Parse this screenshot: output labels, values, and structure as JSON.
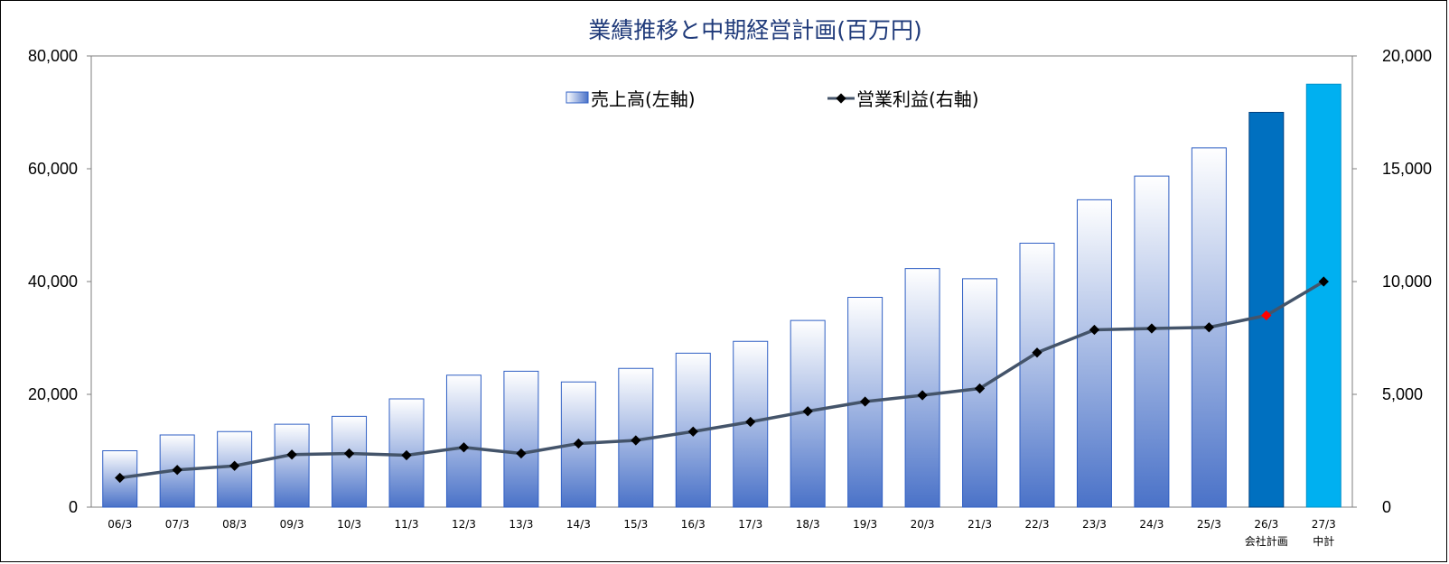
{
  "chart_data": {
    "type": "bar",
    "title": "業績推移と中期経営計画(百万円)",
    "categories": [
      "06/3",
      "07/3",
      "08/3",
      "09/3",
      "10/3",
      "11/3",
      "12/3",
      "13/3",
      "14/3",
      "15/3",
      "16/3",
      "17/3",
      "18/3",
      "19/3",
      "20/3",
      "21/3",
      "22/3",
      "23/3",
      "24/3",
      "25/3",
      "26/3",
      "27/3"
    ],
    "category_sublabels": [
      "",
      "",
      "",
      "",
      "",
      "",
      "",
      "",
      "",
      "",
      "",
      "",
      "",
      "",
      "",
      "",
      "",
      "",
      "",
      "",
      "会社計画",
      "中計"
    ],
    "series": [
      {
        "name": "売上高(左軸)",
        "kind": "bar",
        "axis": "left",
        "values": [
          10000,
          12800,
          13400,
          14700,
          16100,
          19200,
          23400,
          24100,
          22200,
          24600,
          27300,
          29400,
          33100,
          37200,
          42300,
          40500,
          46800,
          54500,
          58700,
          63700,
          70000,
          75000
        ]
      },
      {
        "name": "営業利益(右軸)",
        "kind": "line",
        "axis": "right",
        "values": [
          1300,
          1650,
          1830,
          2330,
          2380,
          2300,
          2650,
          2380,
          2820,
          2960,
          3350,
          3780,
          4250,
          4680,
          4960,
          5260,
          6850,
          7860,
          7920,
          7970,
          8500,
          10000
        ]
      }
    ],
    "left_axis": {
      "ylim": [
        0,
        80000
      ],
      "ticks": [
        "0",
        "20,000",
        "40,000",
        "60,000",
        "80,000"
      ]
    },
    "right_axis": {
      "ylim": [
        0,
        20000
      ],
      "ticks": [
        "0",
        "5,000",
        "10,000",
        "15,000",
        "20,000"
      ]
    },
    "legend_position": "top-center",
    "grid": false,
    "colors": {
      "title": "#1f3a7a",
      "bar_border": "#2f5fc4",
      "bar_gradient_top": "#ffffff",
      "bar_gradient_bottom": "#4a72c8",
      "bar_plan_company": "#0070c0",
      "bar_plan_midterm": "#00b0f0",
      "line": "#44546a",
      "marker": "#000000",
      "marker_highlight": "#ff0000"
    },
    "bar_styles": [
      "gradient",
      "gradient",
      "gradient",
      "gradient",
      "gradient",
      "gradient",
      "gradient",
      "gradient",
      "gradient",
      "gradient",
      "gradient",
      "gradient",
      "gradient",
      "gradient",
      "gradient",
      "gradient",
      "gradient",
      "gradient",
      "gradient",
      "gradient",
      "plan_company",
      "plan_midterm"
    ],
    "marker_styles": [
      "normal",
      "normal",
      "normal",
      "normal",
      "normal",
      "normal",
      "normal",
      "normal",
      "normal",
      "normal",
      "normal",
      "normal",
      "normal",
      "normal",
      "normal",
      "normal",
      "normal",
      "normal",
      "normal",
      "normal",
      "highlight",
      "normal"
    ]
  }
}
